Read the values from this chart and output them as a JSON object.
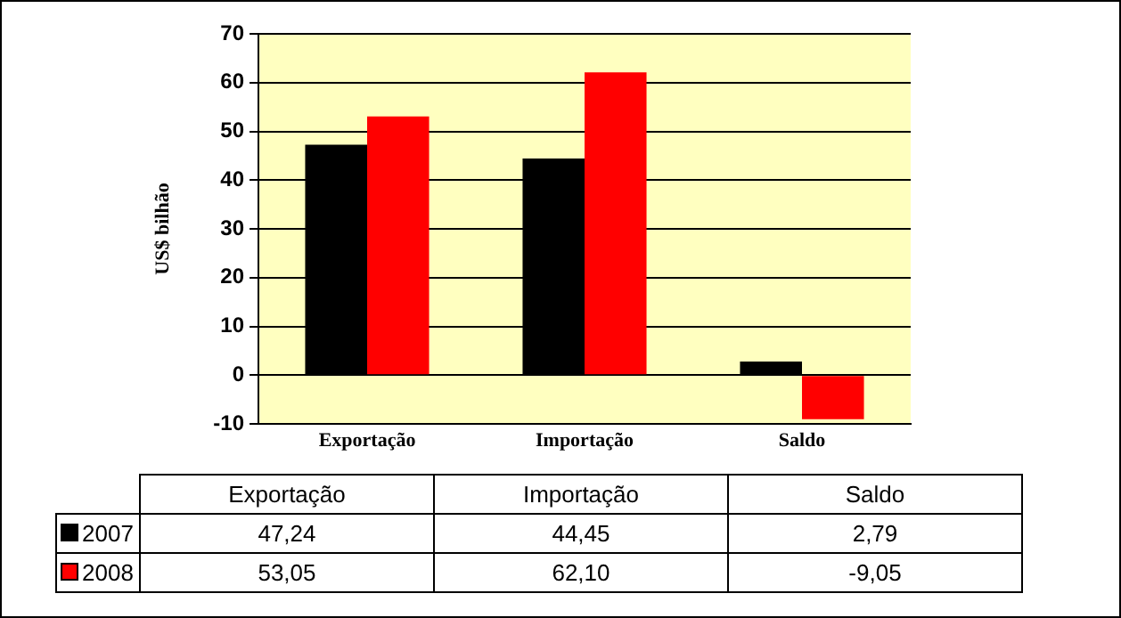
{
  "chart_data": {
    "type": "bar",
    "ylabel": "US$ bilhão",
    "categories": [
      "Exportação",
      "Importação",
      "Saldo"
    ],
    "series": [
      {
        "name": "2007",
        "color": "#000000",
        "values": [
          47.24,
          44.45,
          2.79
        ],
        "value_labels": [
          "47,24",
          "44,45",
          "2,79"
        ]
      },
      {
        "name": "2008",
        "color": "#ff0000",
        "values": [
          53.05,
          62.1,
          -9.05
        ],
        "value_labels": [
          "53,05",
          "62,10",
          "-9,05"
        ]
      }
    ],
    "ylim": [
      -10,
      70
    ],
    "yticks": [
      -10,
      0,
      10,
      20,
      30,
      40,
      50,
      60,
      70
    ],
    "grid": "y",
    "legend": "bottom left"
  }
}
